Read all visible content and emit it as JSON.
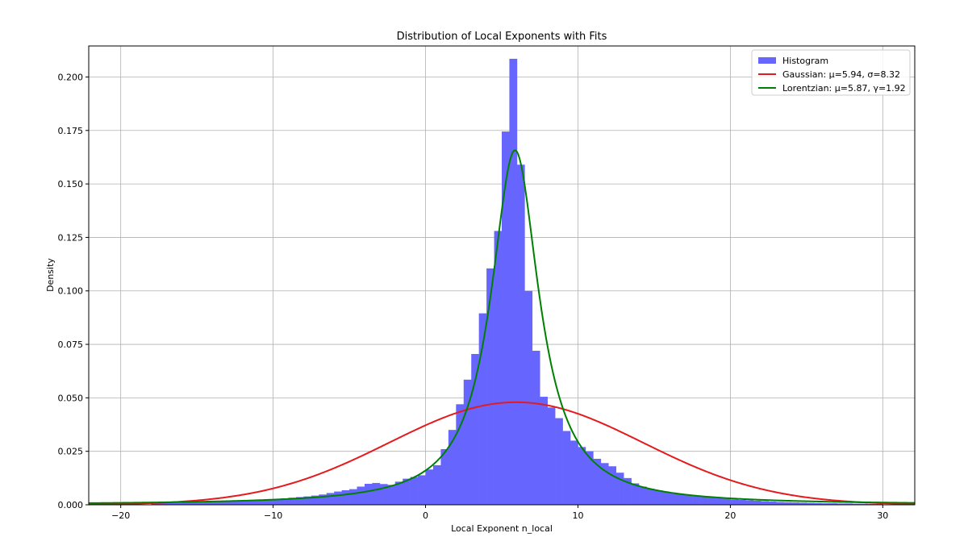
{
  "chart_data": {
    "type": "histogram",
    "title": "Distribution of Local Exponents with Fits",
    "xlabel": "Local Exponent n_local",
    "ylabel": "Density",
    "xlim": [
      -22.1,
      32.1
    ],
    "ylim": [
      0,
      0.2145
    ],
    "xticks": [
      -20,
      -10,
      0,
      10,
      20,
      30
    ],
    "xtick_labels": [
      "−20",
      "−10",
      "0",
      "10",
      "20",
      "30"
    ],
    "yticks": [
      0.0,
      0.025,
      0.05,
      0.075,
      0.1,
      0.125,
      0.15,
      0.175,
      0.2
    ],
    "ytick_labels": [
      "0.000",
      "0.025",
      "0.050",
      "0.075",
      "0.100",
      "0.125",
      "0.150",
      "0.175",
      "0.200"
    ],
    "grid": true,
    "legend_position": "top-right",
    "histogram": {
      "name": "Histogram",
      "color": "#6666ff",
      "bin_width": 0.5,
      "bins": [
        {
          "x0": -18.0,
          "h": 0.0008
        },
        {
          "x0": -17.5,
          "h": 0.0008
        },
        {
          "x0": -17.0,
          "h": 0.0009
        },
        {
          "x0": -16.5,
          "h": 0.0009
        },
        {
          "x0": -16.0,
          "h": 0.001
        },
        {
          "x0": -15.5,
          "h": 0.0011
        },
        {
          "x0": -15.0,
          "h": 0.0011
        },
        {
          "x0": -14.5,
          "h": 0.0012
        },
        {
          "x0": -14.0,
          "h": 0.0013
        },
        {
          "x0": -13.5,
          "h": 0.0015
        },
        {
          "x0": -13.0,
          "h": 0.0016
        },
        {
          "x0": -12.5,
          "h": 0.0018
        },
        {
          "x0": -12.0,
          "h": 0.0019
        },
        {
          "x0": -11.5,
          "h": 0.0021
        },
        {
          "x0": -11.0,
          "h": 0.0023
        },
        {
          "x0": -10.5,
          "h": 0.0025
        },
        {
          "x0": -10.0,
          "h": 0.0028
        },
        {
          "x0": -9.5,
          "h": 0.003
        },
        {
          "x0": -9.0,
          "h": 0.0033
        },
        {
          "x0": -8.5,
          "h": 0.0036
        },
        {
          "x0": -8.0,
          "h": 0.0039
        },
        {
          "x0": -7.5,
          "h": 0.0043
        },
        {
          "x0": -7.0,
          "h": 0.0048
        },
        {
          "x0": -6.5,
          "h": 0.0055
        },
        {
          "x0": -6.0,
          "h": 0.0062
        },
        {
          "x0": -5.5,
          "h": 0.0068
        },
        {
          "x0": -5.0,
          "h": 0.0073
        },
        {
          "x0": -4.5,
          "h": 0.0085
        },
        {
          "x0": -4.0,
          "h": 0.0098
        },
        {
          "x0": -3.5,
          "h": 0.0102
        },
        {
          "x0": -3.0,
          "h": 0.0097
        },
        {
          "x0": -2.5,
          "h": 0.0093
        },
        {
          "x0": -2.0,
          "h": 0.0108
        },
        {
          "x0": -1.5,
          "h": 0.0122
        },
        {
          "x0": -1.0,
          "h": 0.013
        },
        {
          "x0": -0.5,
          "h": 0.0138
        },
        {
          "x0": 0.0,
          "h": 0.0165
        },
        {
          "x0": 0.5,
          "h": 0.0185
        },
        {
          "x0": 1.0,
          "h": 0.026
        },
        {
          "x0": 1.5,
          "h": 0.035
        },
        {
          "x0": 2.0,
          "h": 0.047
        },
        {
          "x0": 2.5,
          "h": 0.0585
        },
        {
          "x0": 3.0,
          "h": 0.0705
        },
        {
          "x0": 3.5,
          "h": 0.0895
        },
        {
          "x0": 4.0,
          "h": 0.1105
        },
        {
          "x0": 4.5,
          "h": 0.128
        },
        {
          "x0": 5.0,
          "h": 0.1745
        },
        {
          "x0": 5.5,
          "h": 0.2085
        },
        {
          "x0": 6.0,
          "h": 0.159
        },
        {
          "x0": 6.5,
          "h": 0.1
        },
        {
          "x0": 7.0,
          "h": 0.072
        },
        {
          "x0": 7.5,
          "h": 0.0505
        },
        {
          "x0": 8.0,
          "h": 0.0455
        },
        {
          "x0": 8.5,
          "h": 0.0405
        },
        {
          "x0": 9.0,
          "h": 0.0345
        },
        {
          "x0": 9.5,
          "h": 0.03
        },
        {
          "x0": 10.0,
          "h": 0.027
        },
        {
          "x0": 10.5,
          "h": 0.025
        },
        {
          "x0": 11.0,
          "h": 0.0215
        },
        {
          "x0": 11.5,
          "h": 0.0195
        },
        {
          "x0": 12.0,
          "h": 0.018
        },
        {
          "x0": 12.5,
          "h": 0.015
        },
        {
          "x0": 13.0,
          "h": 0.0125
        },
        {
          "x0": 13.5,
          "h": 0.01
        },
        {
          "x0": 14.0,
          "h": 0.0085
        },
        {
          "x0": 14.5,
          "h": 0.0075
        },
        {
          "x0": 15.0,
          "h": 0.0068
        },
        {
          "x0": 15.5,
          "h": 0.0062
        },
        {
          "x0": 16.0,
          "h": 0.0055
        },
        {
          "x0": 16.5,
          "h": 0.005
        },
        {
          "x0": 17.0,
          "h": 0.0045
        },
        {
          "x0": 17.5,
          "h": 0.0041
        },
        {
          "x0": 18.0,
          "h": 0.0037
        },
        {
          "x0": 18.5,
          "h": 0.0034
        },
        {
          "x0": 19.0,
          "h": 0.0031
        },
        {
          "x0": 19.5,
          "h": 0.0028
        },
        {
          "x0": 20.0,
          "h": 0.0025
        },
        {
          "x0": 20.5,
          "h": 0.0023
        },
        {
          "x0": 21.0,
          "h": 0.0021
        },
        {
          "x0": 21.5,
          "h": 0.0019
        },
        {
          "x0": 22.0,
          "h": 0.0017
        },
        {
          "x0": 22.5,
          "h": 0.0015
        },
        {
          "x0": 23.0,
          "h": 0.0013
        },
        {
          "x0": 23.5,
          "h": 0.0012
        },
        {
          "x0": 24.0,
          "h": 0.0011
        },
        {
          "x0": 24.5,
          "h": 0.001
        },
        {
          "x0": 25.0,
          "h": 0.0009
        },
        {
          "x0": 25.5,
          "h": 0.0008
        },
        {
          "x0": 26.0,
          "h": 0.0007
        },
        {
          "x0": 26.5,
          "h": 0.0007
        },
        {
          "x0": 27.0,
          "h": 0.0006
        },
        {
          "x0": 27.5,
          "h": 0.0006
        },
        {
          "x0": 28.0,
          "h": 0.0005
        },
        {
          "x0": 28.5,
          "h": 0.0005
        },
        {
          "x0": 29.0,
          "h": 0.0004
        },
        {
          "x0": 29.5,
          "h": 0.0004
        }
      ]
    },
    "series": [
      {
        "name": "Gaussian: μ=5.94, σ=8.32",
        "type": "gaussian",
        "mu": 5.94,
        "sigma": 8.32,
        "color": "#e41a1c"
      },
      {
        "name": "Lorentzian: μ=5.87, γ=1.92",
        "type": "lorentzian",
        "mu": 5.87,
        "gamma": 1.92,
        "color": "#008000"
      }
    ]
  }
}
